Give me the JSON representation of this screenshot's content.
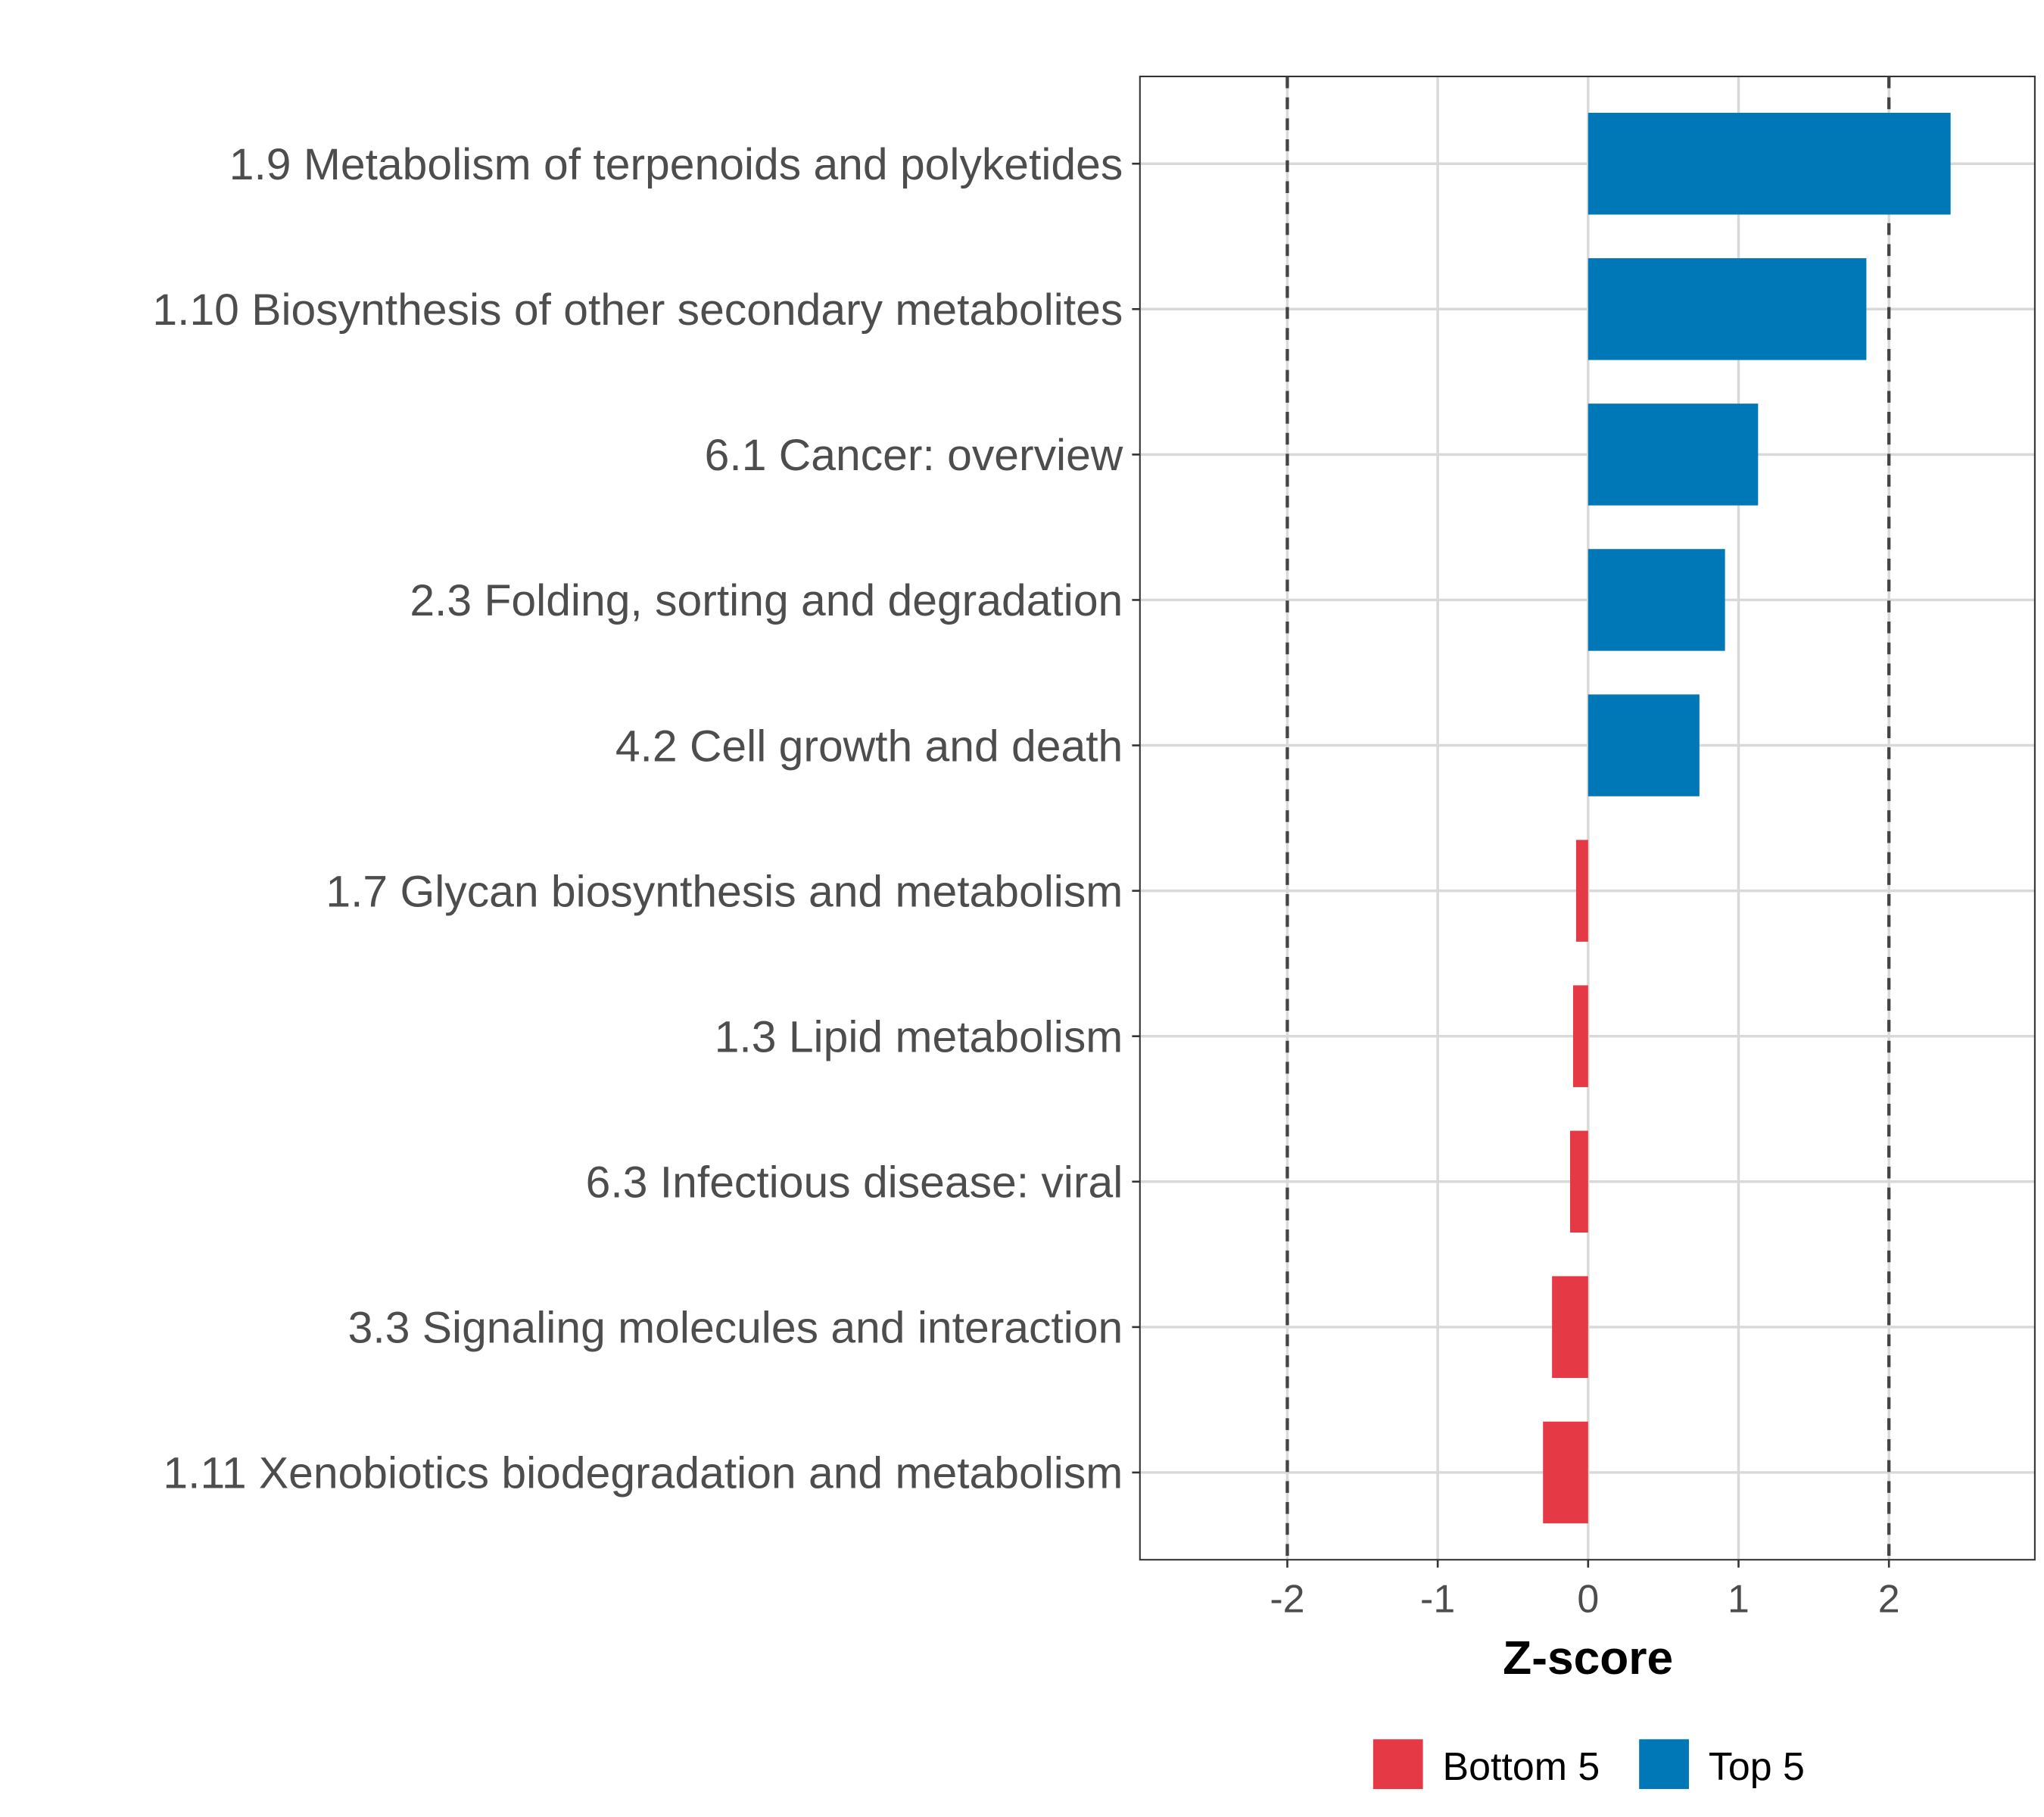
{
  "chart_data": {
    "type": "bar",
    "orientation": "horizontal",
    "title": "",
    "xlabel": "Z-score",
    "ylabel": "",
    "xlim": [
      -2.98,
      2.97
    ],
    "xticks": [
      -2,
      -1,
      0,
      1,
      2
    ],
    "xtick_labels": [
      "-2",
      "-1",
      "0",
      "1",
      "2"
    ],
    "reference_lines": [
      -2,
      2
    ],
    "grid": true,
    "legend_position": "bottom",
    "categories": [
      "1.9 Metabolism of terpenoids and polyketides",
      "1.10 Biosynthesis of other secondary metabolites",
      "6.1 Cancer: overview",
      "2.3 Folding, sorting and degradation",
      "4.2 Cell growth and death",
      "1.7 Glycan biosynthesis and metabolism",
      "1.3 Lipid metabolism",
      "6.3 Infectious disease: viral",
      "3.3 Signaling molecules and interaction",
      "1.11 Xenobiotics biodegradation and metabolism"
    ],
    "values": [
      2.41,
      1.85,
      1.13,
      0.91,
      0.74,
      -0.08,
      -0.1,
      -0.12,
      -0.24,
      -0.3
    ],
    "groups": [
      "Top 5",
      "Top 5",
      "Top 5",
      "Top 5",
      "Top 5",
      "Bottom 5",
      "Bottom 5",
      "Bottom 5",
      "Bottom 5",
      "Bottom 5"
    ],
    "legend": [
      {
        "name": "Bottom 5",
        "color": "#E63946"
      },
      {
        "name": "Top 5",
        "color": "#0077B6"
      }
    ]
  }
}
